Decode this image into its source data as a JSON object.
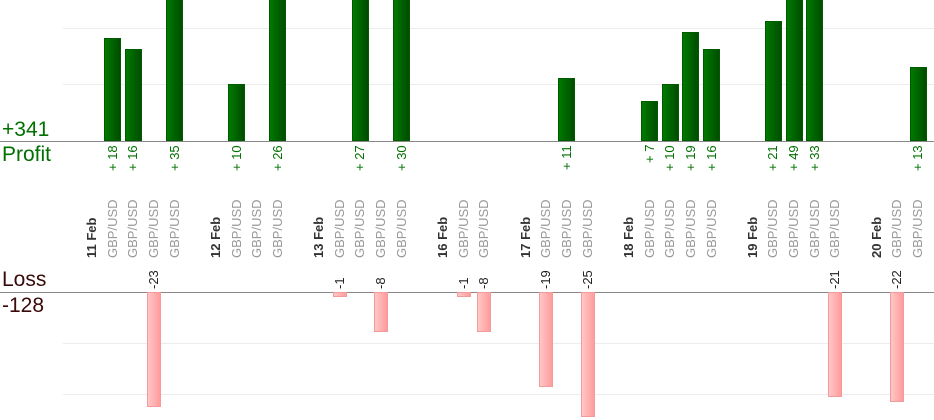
{
  "summary": {
    "profit_total": "+341",
    "profit_label": "Profit",
    "loss_label": "Loss",
    "loss_total": "-128"
  },
  "colors": {
    "profit": "#006400",
    "loss": "#ffaaaa",
    "profit_text": "#007000",
    "loss_text": "#3a0a0a"
  },
  "chart_data": {
    "type": "bar",
    "gridlines_every": 10,
    "grid": true,
    "days": [
      {
        "date": "11 Feb",
        "trades": [
          {
            "pair": "GBP/USD",
            "value": 18
          },
          {
            "pair": "GBP/USD",
            "value": 16
          },
          {
            "pair": "GBP/USD",
            "value": -23
          },
          {
            "pair": "GBP/USD",
            "value": 35
          }
        ]
      },
      {
        "date": "12 Feb",
        "trades": [
          {
            "pair": "GBP/USD",
            "value": 10
          },
          {
            "pair": "GBP/USD",
            "value": null
          },
          {
            "pair": "GBP/USD",
            "value": 26
          }
        ]
      },
      {
        "date": "13 Feb",
        "trades": [
          {
            "pair": "GBP/USD",
            "value": -1
          },
          {
            "pair": "GBP/USD",
            "value": 27
          },
          {
            "pair": "GBP/USD",
            "value": -8
          },
          {
            "pair": "GBP/USD",
            "value": 30
          }
        ]
      },
      {
        "date": "16 Feb",
        "trades": [
          {
            "pair": "GBP/USD",
            "value": -1
          },
          {
            "pair": "GBP/USD",
            "value": -8
          }
        ]
      },
      {
        "date": "17 Feb",
        "trades": [
          {
            "pair": "GBP/USD",
            "value": -19
          },
          {
            "pair": "GBP/USD",
            "value": 11
          },
          {
            "pair": "GBP/USD",
            "value": -25
          }
        ]
      },
      {
        "date": "18 Feb",
        "trades": [
          {
            "pair": "GBP/USD",
            "value": 7
          },
          {
            "pair": "GBP/USD",
            "value": 10
          },
          {
            "pair": "GBP/USD",
            "value": 19
          },
          {
            "pair": "GBP/USD",
            "value": 16
          }
        ]
      },
      {
        "date": "19 Feb",
        "trades": [
          {
            "pair": "GBP/USD",
            "value": 21
          },
          {
            "pair": "GBP/USD",
            "value": 49
          },
          {
            "pair": "GBP/USD",
            "value": 33
          },
          {
            "pair": "GBP/USD",
            "value": -21
          }
        ]
      },
      {
        "date": "20 Feb",
        "trades": [
          {
            "pair": "GBP/USD",
            "value": -22
          },
          {
            "pair": "GBP/USD",
            "value": 13
          }
        ]
      }
    ]
  }
}
